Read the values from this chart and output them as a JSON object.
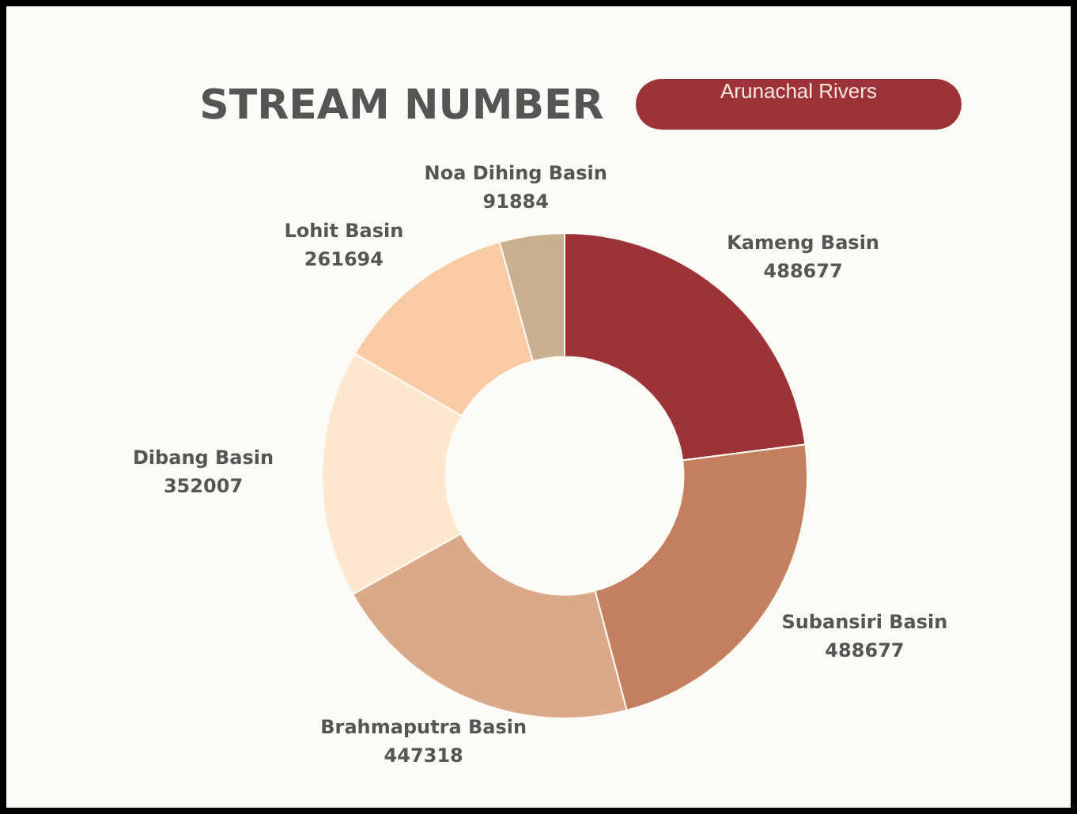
{
  "chart_data": {
    "type": "donut",
    "title": "STREAM NUMBER",
    "subtitle": "Arunachal Rivers",
    "categories": [
      "Kameng Basin",
      "Subansiri Basin",
      "Brahmaputra Basin",
      "Dibang Basin",
      "Lohit Basin",
      "Noa Dihing Basin"
    ],
    "values": [
      488677,
      488677,
      447318,
      352007,
      261694,
      91884
    ],
    "colors": [
      "#9b3338",
      "#c47f5e",
      "#dba98a",
      "#fde8cf",
      "#f9cba5",
      "#c9b08f"
    ],
    "data_labels": true,
    "legend": false
  }
}
